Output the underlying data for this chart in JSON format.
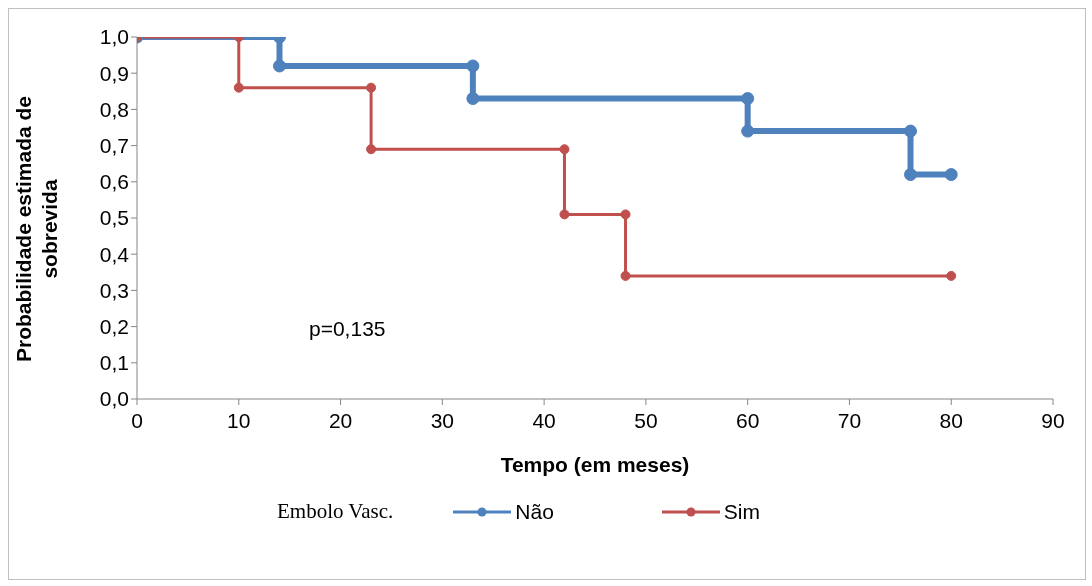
{
  "chart_data": {
    "type": "line",
    "xlabel": "Tempo (em meses)",
    "ylabel": "Probabilidade estimada de sobrevida",
    "legend_title": "Embolo Vasc.",
    "legend": "bottom",
    "grid": false,
    "marker": "circle",
    "line_style": "solid",
    "xlim": [
      0,
      90
    ],
    "xticks": [
      0,
      10,
      20,
      30,
      40,
      50,
      60,
      70,
      80,
      90
    ],
    "ylim": [
      0,
      1
    ],
    "yticks": [
      {
        "value": 0,
        "label": "0,0"
      },
      {
        "value": 0.1,
        "label": "0,1"
      },
      {
        "value": 0.2,
        "label": "0,2"
      },
      {
        "value": 0.3,
        "label": "0,3"
      },
      {
        "value": 0.4,
        "label": "0,4"
      },
      {
        "value": 0.5,
        "label": "0,5"
      },
      {
        "value": 0.6,
        "label": "0,6"
      },
      {
        "value": 0.7,
        "label": "0,7"
      },
      {
        "value": 0.8,
        "label": "0,8"
      },
      {
        "value": 0.9,
        "label": "0,9"
      },
      {
        "value": 1,
        "label": "1,0"
      }
    ],
    "annotations": [
      "p=0,135"
    ],
    "series": [
      {
        "name": "Não",
        "color": "#4f81bd",
        "x": [
          0,
          14,
          14,
          33,
          33,
          60,
          60,
          76,
          76,
          80
        ],
        "values": [
          1,
          1,
          0.92,
          0.92,
          0.83,
          0.83,
          0.74,
          0.74,
          0.62,
          0.62
        ]
      },
      {
        "name": "Sim",
        "color": "#c0504d",
        "x": [
          0,
          10,
          10,
          23,
          23,
          42,
          42,
          48,
          48,
          80
        ],
        "values": [
          1,
          1,
          0.86,
          0.86,
          0.69,
          0.69,
          0.51,
          0.51,
          0.34,
          0.34
        ]
      }
    ]
  }
}
